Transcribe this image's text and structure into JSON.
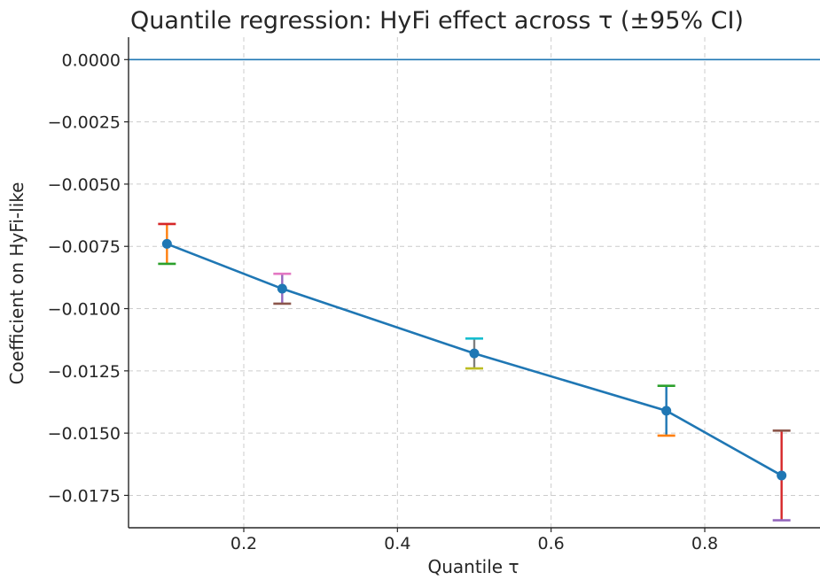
{
  "chart_data": {
    "type": "line",
    "title": "Quantile regression: HyFi effect across τ (±95% CI)",
    "xlabel": "Quantile τ",
    "ylabel": "Coefficient on HyFi-like",
    "xlim": [
      0.05,
      0.95
    ],
    "ylim": [
      -0.0188,
      0.0009
    ],
    "x_ticks": [
      0.2,
      0.4,
      0.6,
      0.8
    ],
    "x_tick_labels": [
      "0.2",
      "0.4",
      "0.6",
      "0.8"
    ],
    "y_ticks": [
      0.0,
      -0.0025,
      -0.005,
      -0.0075,
      -0.01,
      -0.0125,
      -0.015,
      -0.0175
    ],
    "y_tick_labels": [
      "0.0000",
      "−0.0025",
      "−0.0050",
      "−0.0075",
      "−0.0100",
      "−0.0125",
      "−0.0150",
      "−0.0175"
    ],
    "grid": true,
    "reference_line": {
      "y": 0.0,
      "color": "#1f77b4"
    },
    "series": [
      {
        "x": [
          0.1,
          0.25,
          0.5,
          0.75,
          0.9
        ],
        "y": [
          -0.0074,
          -0.0092,
          -0.0118,
          -0.0141,
          -0.0167
        ],
        "ci_upper": [
          -0.0066,
          -0.0086,
          -0.0112,
          -0.0131,
          -0.0149
        ],
        "ci_lower": [
          -0.0082,
          -0.0098,
          -0.0124,
          -0.0151,
          -0.0185
        ],
        "color": "#1f77b4",
        "errorbar_colors": [
          {
            "upper": "#d62728",
            "lower": "#2ca02c",
            "stem": "#ff7f0e"
          },
          {
            "upper": "#e377c2",
            "lower": "#8c564b",
            "stem": "#9467bd"
          },
          {
            "upper": "#17becf",
            "lower": "#bcbd22",
            "stem": "#7f7f7f"
          },
          {
            "upper": "#2ca02c",
            "lower": "#ff7f0e",
            "stem": "#1f77b4"
          },
          {
            "upper": "#8c564b",
            "lower": "#9467bd",
            "stem": "#d62728"
          }
        ]
      }
    ]
  }
}
